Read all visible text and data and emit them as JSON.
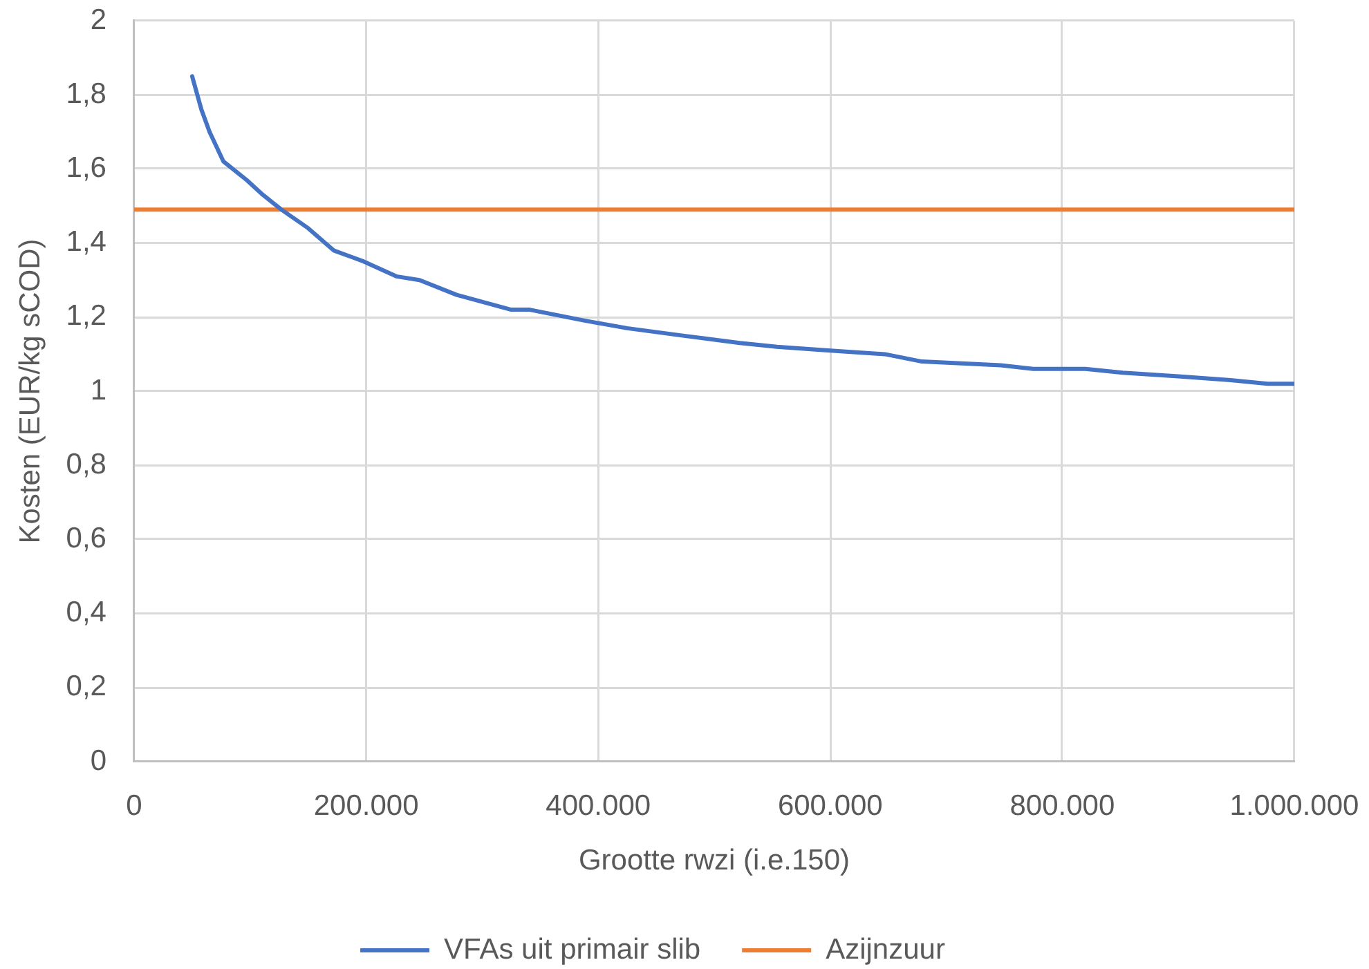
{
  "chart_data": {
    "type": "line",
    "xlabel": "Grootte rwzi (i.e.150)",
    "ylabel": "Kosten (EUR/kg sCOD)",
    "xlim": [
      0,
      1000000
    ],
    "xticks": [
      0,
      {
        "value": 200000,
        "label": "200.000"
      },
      {
        "value": 400000,
        "label": "400.000"
      },
      {
        "value": 600000,
        "label": "600.000"
      },
      {
        "value": 800000,
        "label": "800.000"
      },
      {
        "value": 1000000,
        "label": "1.000.000"
      }
    ],
    "ylim": [
      0,
      2
    ],
    "yticks": [
      0,
      {
        "value": 0.2,
        "label": "0,2"
      },
      {
        "value": 0.4,
        "label": "0,4"
      },
      {
        "value": 0.6,
        "label": "0,6"
      },
      {
        "value": 0.8,
        "label": "0,8"
      },
      1,
      {
        "value": 1.2,
        "label": "1,2"
      },
      {
        "value": 1.4,
        "label": "1,4"
      },
      {
        "value": 1.6,
        "label": "1,6"
      },
      {
        "value": 1.8,
        "label": "1,8"
      },
      2
    ],
    "grid": true,
    "legend": "bottom",
    "marker": "none",
    "line_style": "solid",
    "series": [
      {
        "name": "VFAs uit primair slib",
        "color": "#4472c4",
        "x": [
          50000,
          58000,
          65000,
          77000,
          85000,
          97000,
          111000,
          127000,
          150000,
          172000,
          198000,
          226000,
          246000,
          278000,
          325000,
          341000,
          389000,
          425000,
          473000,
          522000,
          554000,
          598000,
          647000,
          679000,
          747000,
          775000,
          820000,
          852000,
          900000,
          945000,
          977000,
          1000000
        ],
        "values": [
          1.85,
          1.76,
          1.7,
          1.62,
          1.6,
          1.57,
          1.53,
          1.49,
          1.44,
          1.38,
          1.35,
          1.31,
          1.3,
          1.26,
          1.22,
          1.22,
          1.19,
          1.17,
          1.15,
          1.13,
          1.12,
          1.11,
          1.1,
          1.08,
          1.07,
          1.06,
          1.06,
          1.05,
          1.04,
          1.03,
          1.02,
          1.02
        ]
      },
      {
        "name": "Azijnzuur",
        "color": "#ed7d31",
        "x": [
          0,
          1000000
        ],
        "values": [
          1.49,
          1.49
        ]
      }
    ]
  }
}
